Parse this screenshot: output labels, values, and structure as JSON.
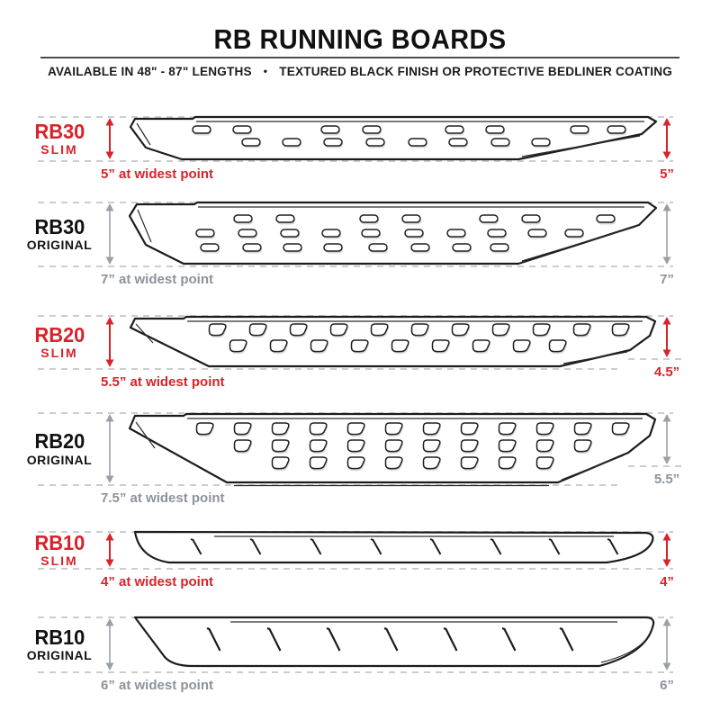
{
  "header": {
    "title": "RB RUNNING BOARDS",
    "subtitle_left": "AVAILABLE IN 48\" - 87\" LENGTHS",
    "bullet": "•",
    "subtitle_right": "TEXTURED BLACK FINISH OR PROTECTIVE BEDLINER COATING"
  },
  "colors": {
    "accent_red": "#d8232a",
    "gray_arrow": "#9aa0a6",
    "gray_text": "#8d939a",
    "dash_gray": "#cbcdd0",
    "line_black": "#1c1c1c"
  },
  "rows": [
    {
      "model": "RB30",
      "variant": "SLIM",
      "accent": "red",
      "widest_label": "5” at widest point",
      "height_label": "5”",
      "widest_in": 5,
      "end_height_in": 5,
      "tread_style": "oval-slots"
    },
    {
      "model": "RB30",
      "variant": "ORIGINAL",
      "accent": "gray",
      "widest_label": "7” at widest point",
      "height_label": "7”",
      "widest_in": 7,
      "end_height_in": 7,
      "tread_style": "oval-slots"
    },
    {
      "model": "RB20",
      "variant": "SLIM",
      "accent": "red",
      "widest_label": "5.5” at widest point",
      "height_label": "4.5”",
      "widest_in": 5.5,
      "end_height_in": 4.5,
      "tread_style": "d-slots"
    },
    {
      "model": "RB20",
      "variant": "ORIGINAL",
      "accent": "gray",
      "widest_label": "7.5” at widest point",
      "height_label": "5.5”",
      "widest_in": 7.5,
      "end_height_in": 5.5,
      "tread_style": "d-slots"
    },
    {
      "model": "RB10",
      "variant": "SLIM",
      "accent": "red",
      "widest_label": "4” at widest point",
      "height_label": "4”",
      "widest_in": 4,
      "end_height_in": 4,
      "tread_style": "hash-marks"
    },
    {
      "model": "RB10",
      "variant": "ORIGINAL",
      "accent": "gray",
      "widest_label": "6” at widest point",
      "height_label": "6”",
      "widest_in": 6,
      "end_height_in": 6,
      "tread_style": "hash-marks"
    }
  ]
}
